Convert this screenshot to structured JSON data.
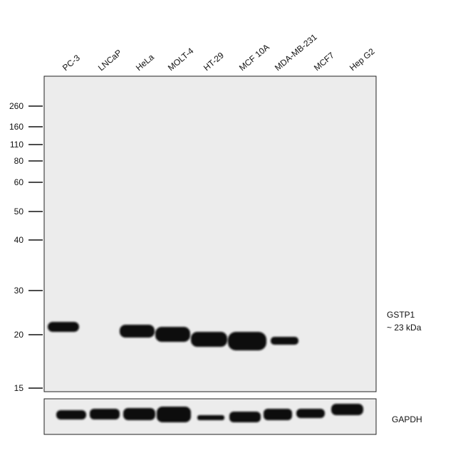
{
  "lanes": [
    "PC-3",
    "LNCaP",
    "HeLa",
    "MOLT-4",
    "HT-29",
    "MCF 10A",
    "MDA-MB-231",
    "MCF7",
    "Hep G2"
  ],
  "markers": [
    "260",
    "160",
    "110",
    "80",
    "60",
    "50",
    "40",
    "30",
    "20",
    "15"
  ],
  "target": {
    "name": "GSTP1",
    "size": "~ 23 kDa"
  },
  "loading_control": "GAPDH"
}
